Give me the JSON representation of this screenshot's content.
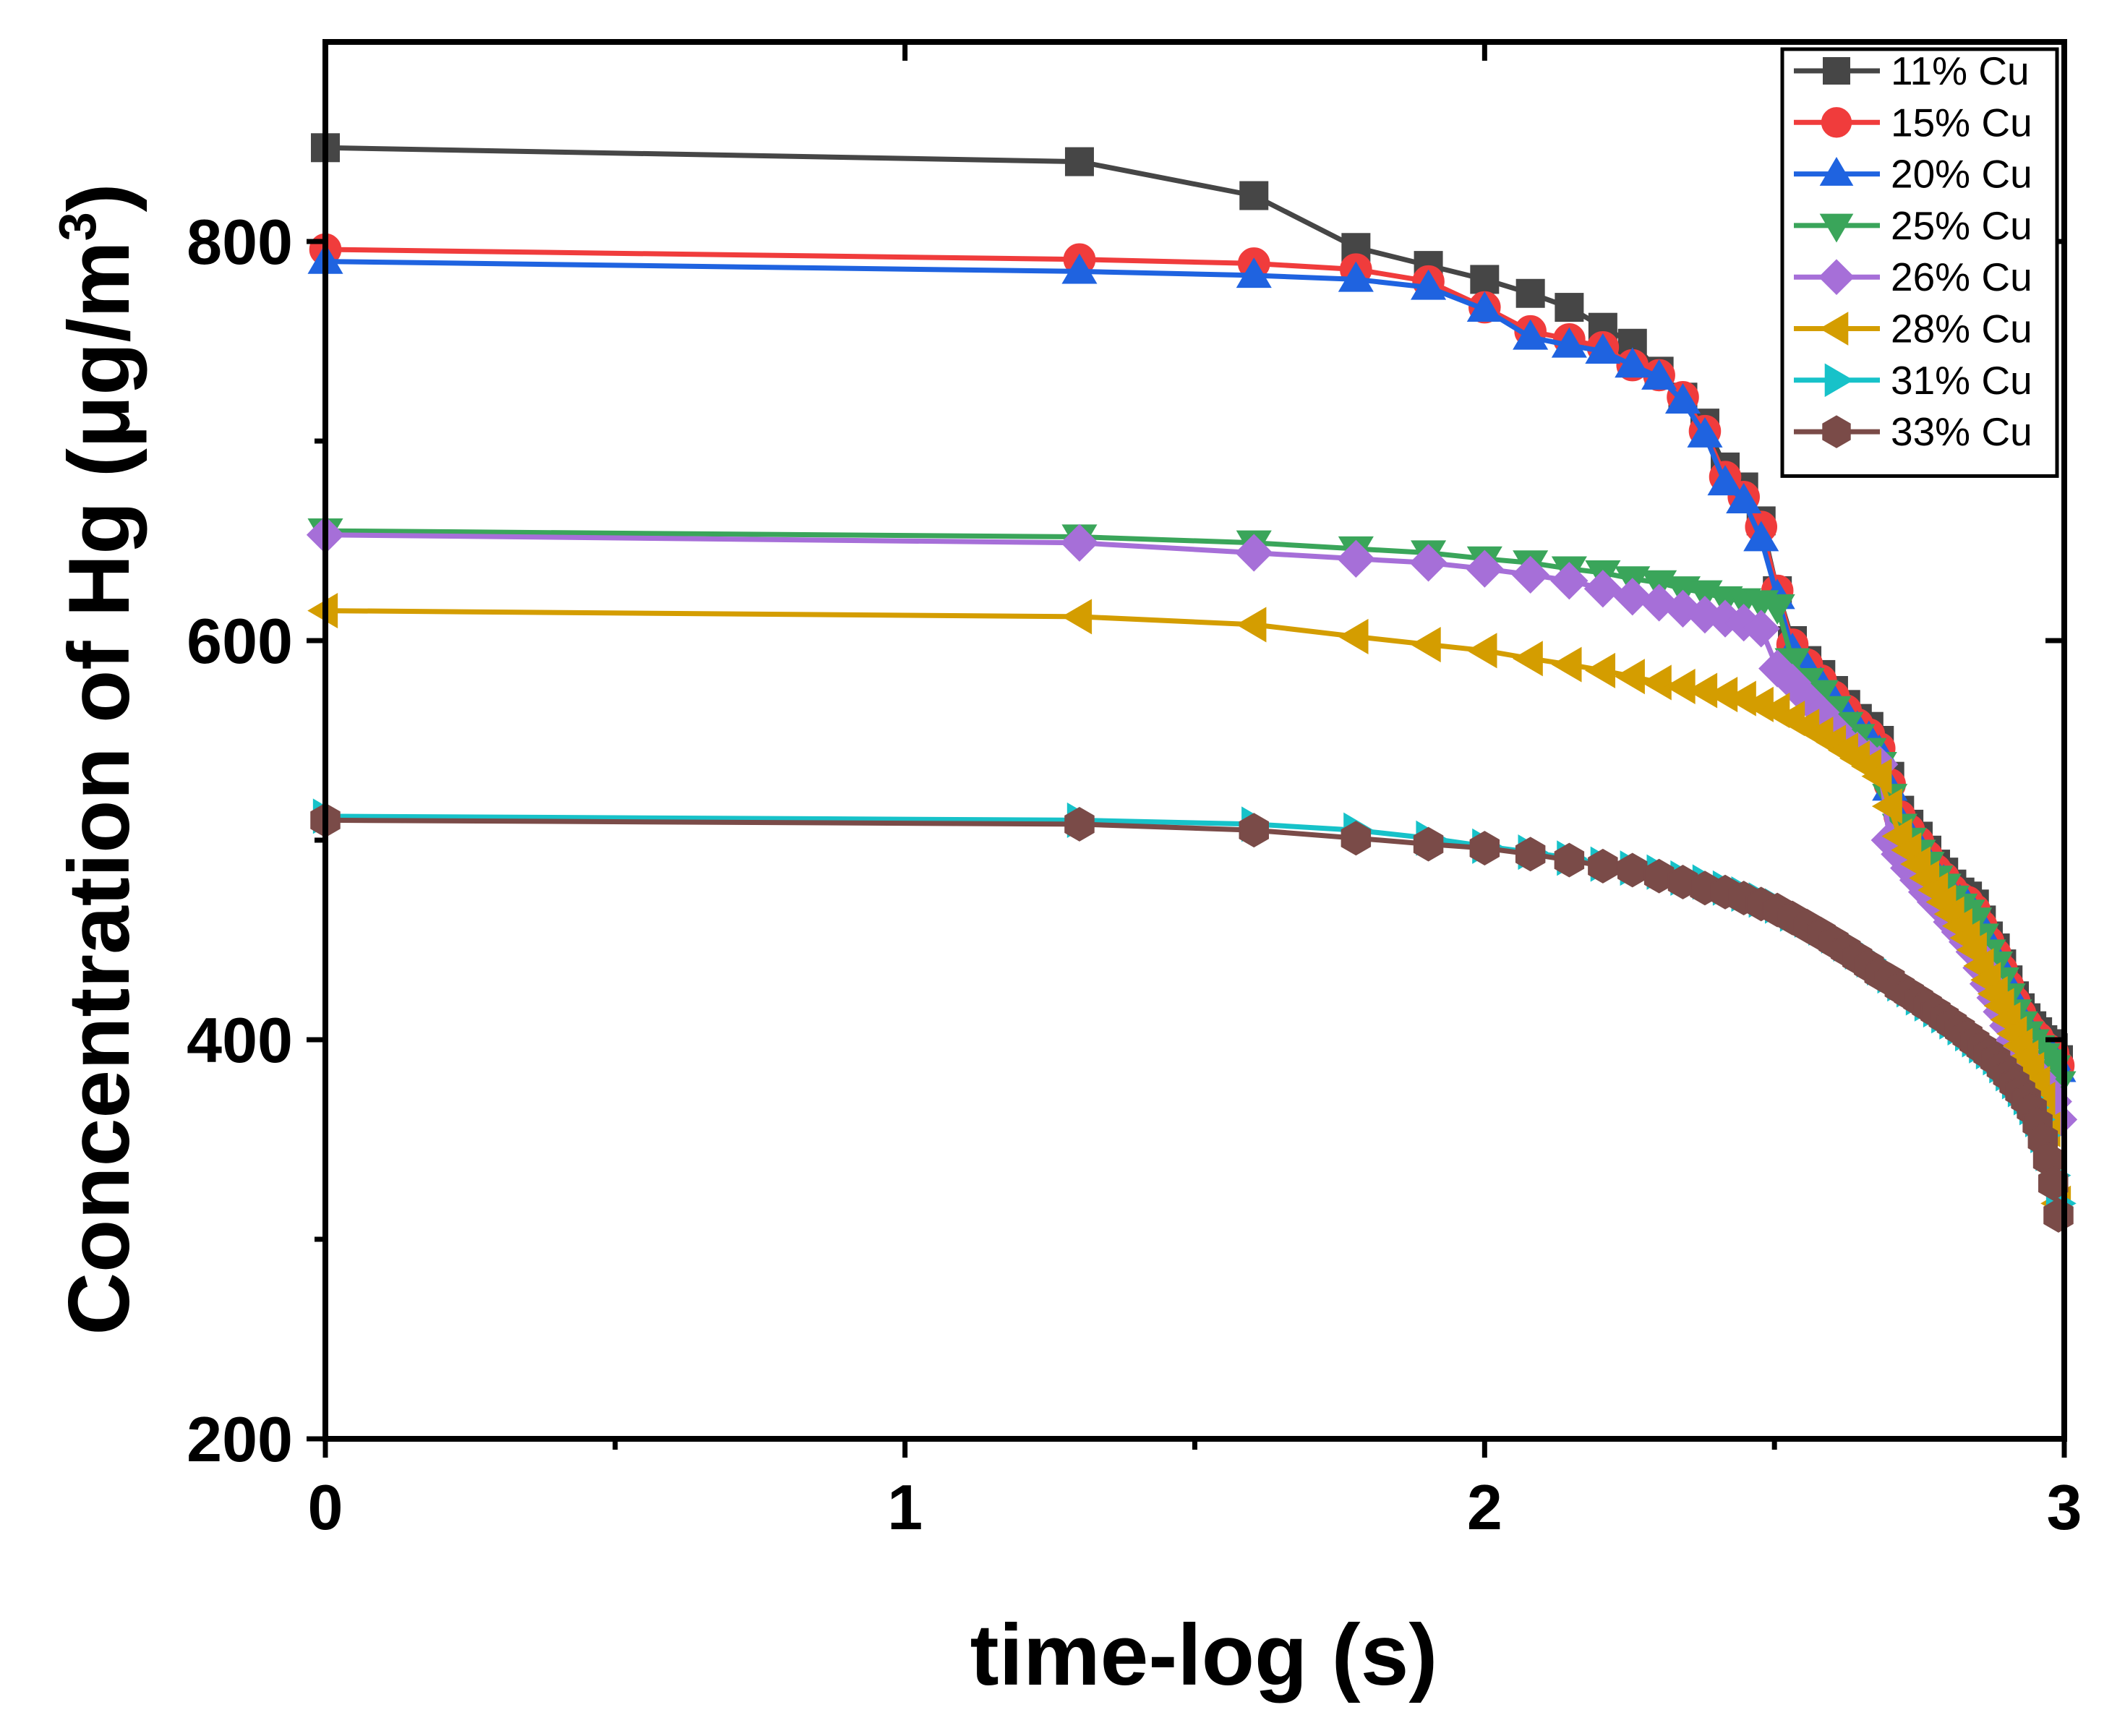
{
  "chart_data": {
    "type": "line",
    "title": "",
    "xlabel": "time-log (s)",
    "ylabel": "Concentration of Hg (μg/m",
    "ylabel_superscript": "3",
    "ylabel_close": ")",
    "xlim": [
      0,
      3
    ],
    "ylim": [
      200,
      900
    ],
    "x_ticks": [
      0,
      1,
      2,
      3
    ],
    "x_tick_labels": [
      "0",
      "1",
      "2",
      "3"
    ],
    "y_ticks": [
      200,
      400,
      600,
      800
    ],
    "y_tick_labels": [
      "200",
      "400",
      "600",
      "800"
    ],
    "x_minor_ticks": [
      0.5,
      1.5,
      2.5
    ],
    "y_minor_ticks": [
      300,
      500,
      700
    ],
    "grid": false,
    "legend_position": "top-right",
    "series": [
      {
        "name": "11% Cu",
        "color": "#464646",
        "marker": "square",
        "x": [
          0,
          1.301,
          1.602,
          1.778,
          1.903,
          2.0,
          2.079,
          2.146,
          2.204,
          2.255,
          2.301,
          2.342,
          2.38,
          2.415,
          2.447,
          2.477,
          2.505,
          2.531,
          2.556,
          2.58,
          2.602,
          2.623,
          2.643,
          2.663,
          2.681,
          2.699,
          2.716,
          2.732,
          2.748,
          2.763,
          2.778,
          2.792,
          2.806,
          2.82,
          2.833,
          2.845,
          2.857,
          2.869,
          2.881,
          2.892,
          2.903,
          2.914,
          2.924,
          2.934,
          2.944,
          2.954,
          2.963,
          2.972,
          2.981,
          2.99
        ],
        "y": [
          847,
          840,
          823,
          797,
          788,
          781,
          774,
          767,
          757,
          749,
          735,
          722,
          709,
          687,
          677,
          660,
          625,
          600,
          590,
          583,
          575,
          568,
          561,
          557,
          550,
          532,
          515,
          508,
          502,
          495,
          488,
          484,
          478,
          474,
          472,
          468,
          460,
          452,
          446,
          438,
          430,
          422,
          416,
          411,
          407,
          404,
          400,
          398,
          396,
          390
        ]
      },
      {
        "name": "15% Cu",
        "color": "#f03c3c",
        "marker": "circle",
        "x": [
          0,
          1.301,
          1.602,
          1.778,
          1.903,
          2.0,
          2.079,
          2.146,
          2.204,
          2.255,
          2.301,
          2.342,
          2.38,
          2.415,
          2.447,
          2.477,
          2.505,
          2.531,
          2.556,
          2.58,
          2.602,
          2.623,
          2.643,
          2.663,
          2.681,
          2.699,
          2.716,
          2.732,
          2.748,
          2.763,
          2.778,
          2.792,
          2.806,
          2.82,
          2.833,
          2.845,
          2.857,
          2.869,
          2.881,
          2.892,
          2.903,
          2.914,
          2.924,
          2.934,
          2.944,
          2.954,
          2.963,
          2.972,
          2.981,
          2.99
        ],
        "y": [
          796,
          791,
          789,
          786,
          780,
          767,
          755,
          751,
          747,
          738,
          733,
          722,
          705,
          682,
          672,
          657,
          625,
          598,
          588,
          580,
          572,
          565,
          558,
          553,
          546,
          528,
          512,
          505,
          499,
          492,
          485,
          481,
          475,
          471,
          469,
          465,
          457,
          449,
          443,
          435,
          427,
          419,
          413,
          408,
          404,
          401,
          397,
          395,
          393,
          387
        ]
      },
      {
        "name": "20% Cu",
        "color": "#1f63e0",
        "marker": "triangle-up",
        "x": [
          0,
          1.301,
          1.602,
          1.778,
          1.903,
          2.0,
          2.079,
          2.146,
          2.204,
          2.255,
          2.301,
          2.342,
          2.38,
          2.415,
          2.447,
          2.477,
          2.505,
          2.531,
          2.556,
          2.58,
          2.602,
          2.623,
          2.643,
          2.663,
          2.681,
          2.699,
          2.716,
          2.732,
          2.748,
          2.763,
          2.778,
          2.792,
          2.806,
          2.82,
          2.833,
          2.845,
          2.857,
          2.869,
          2.881,
          2.892,
          2.903,
          2.914,
          2.924,
          2.934,
          2.944,
          2.954,
          2.963,
          2.972,
          2.981,
          2.99
        ],
        "y": [
          790,
          785,
          783,
          781,
          777,
          766,
          752,
          748,
          745,
          738,
          732,
          720,
          703,
          679,
          670,
          651,
          622,
          595,
          586,
          578,
          570,
          563,
          556,
          551,
          544,
          526,
          510,
          503,
          497,
          490,
          483,
          479,
          473,
          469,
          467,
          463,
          455,
          447,
          441,
          433,
          425,
          417,
          411,
          406,
          402,
          399,
          395,
          393,
          391,
          385
        ]
      },
      {
        "name": "25% Cu",
        "color": "#3aa55a",
        "marker": "triangle-down",
        "x": [
          0,
          1.301,
          1.602,
          1.778,
          1.903,
          2.0,
          2.079,
          2.146,
          2.204,
          2.255,
          2.301,
          2.342,
          2.38,
          2.415,
          2.447,
          2.477,
          2.505,
          2.531,
          2.556,
          2.58,
          2.602,
          2.623,
          2.643,
          2.663,
          2.681,
          2.699,
          2.716,
          2.732,
          2.748,
          2.763,
          2.778,
          2.792,
          2.806,
          2.82,
          2.833,
          2.845,
          2.857,
          2.869,
          2.881,
          2.892,
          2.903,
          2.914,
          2.924,
          2.934,
          2.944,
          2.954,
          2.963,
          2.972,
          2.981,
          2.99
        ],
        "y": [
          655,
          652,
          649,
          646,
          644,
          641,
          639,
          636,
          634,
          631,
          629,
          626,
          624,
          621,
          620,
          619,
          617,
          590,
          580,
          574,
          566,
          558,
          552,
          545,
          538,
          522,
          507,
          500,
          494,
          488,
          481,
          477,
          471,
          467,
          464,
          460,
          452,
          444,
          438,
          430,
          422,
          414,
          408,
          403,
          399,
          396,
          392,
          389,
          386,
          378
        ]
      },
      {
        "name": "26% Cu",
        "color": "#a66fd8",
        "marker": "diamond",
        "x": [
          0,
          1.301,
          1.602,
          1.778,
          1.903,
          2.0,
          2.079,
          2.146,
          2.204,
          2.255,
          2.301,
          2.342,
          2.38,
          2.415,
          2.447,
          2.477,
          2.505,
          2.531,
          2.556,
          2.58,
          2.602,
          2.623,
          2.643,
          2.663,
          2.681,
          2.699,
          2.716,
          2.732,
          2.748,
          2.763,
          2.778,
          2.792,
          2.806,
          2.82,
          2.833,
          2.845,
          2.857,
          2.869,
          2.881,
          2.892,
          2.903,
          2.914,
          2.924,
          2.934,
          2.944,
          2.954,
          2.963,
          2.972,
          2.981,
          2.99
        ],
        "y": [
          653,
          649,
          644,
          641,
          639,
          636,
          633,
          630,
          626,
          622,
          619,
          616,
          613,
          611,
          609,
          606,
          586,
          579,
          571,
          564,
          556,
          549,
          545,
          541,
          538,
          500,
          493,
          486,
          480,
          474,
          469,
          465,
          459,
          454,
          449,
          444,
          436,
          428,
          421,
          414,
          407,
          400,
          395,
          390,
          385,
          381,
          377,
          373,
          369,
          360
        ]
      },
      {
        "name": "28% Cu",
        "color": "#d49d00",
        "marker": "triangle-left",
        "x": [
          0,
          1.301,
          1.602,
          1.778,
          1.903,
          2.0,
          2.079,
          2.146,
          2.204,
          2.255,
          2.301,
          2.342,
          2.38,
          2.415,
          2.447,
          2.477,
          2.505,
          2.531,
          2.556,
          2.58,
          2.602,
          2.623,
          2.643,
          2.663,
          2.681,
          2.699,
          2.716,
          2.732,
          2.748,
          2.763,
          2.778,
          2.792,
          2.806,
          2.82,
          2.833,
          2.845,
          2.857,
          2.869,
          2.881,
          2.892,
          2.903,
          2.914,
          2.924,
          2.934,
          2.944,
          2.954,
          2.963,
          2.972,
          2.981,
          2.99
        ],
        "y": [
          615,
          612,
          608,
          602,
          598,
          595,
          591,
          588,
          585,
          582,
          579,
          577,
          575,
          573,
          571,
          568,
          565,
          561,
          557,
          553,
          549,
          545,
          541,
          537,
          532,
          517,
          502,
          495,
          488,
          481,
          475,
          469,
          463,
          457,
          451,
          445,
          437,
          430,
          423,
          417,
          410,
          403,
          397,
          391,
          385,
          378,
          370,
          355,
          335,
          318
        ]
      },
      {
        "name": "31% Cu",
        "color": "#17c2c9",
        "marker": "triangle-right",
        "x": [
          0,
          1.301,
          1.602,
          1.778,
          1.903,
          2.0,
          2.079,
          2.146,
          2.204,
          2.255,
          2.301,
          2.342,
          2.38,
          2.415,
          2.447,
          2.477,
          2.505,
          2.531,
          2.556,
          2.58,
          2.602,
          2.623,
          2.643,
          2.663,
          2.681,
          2.699,
          2.716,
          2.732,
          2.748,
          2.763,
          2.778,
          2.792,
          2.806,
          2.82,
          2.833,
          2.845,
          2.857,
          2.869,
          2.881,
          2.892,
          2.903,
          2.914,
          2.924,
          2.934,
          2.944,
          2.954,
          2.963,
          2.972,
          2.981,
          2.99
        ],
        "y": [
          512,
          510,
          508,
          505,
          501,
          497,
          494,
          491,
          488,
          486,
          484,
          481,
          479,
          476,
          473,
          470,
          467,
          463,
          460,
          456,
          452,
          448,
          444,
          440,
          436,
          432,
          428,
          425,
          421,
          418,
          415,
          412,
          409,
          406,
          403,
          400,
          397,
          394,
          391,
          387,
          383,
          379,
          375,
          371,
          366,
          360,
          352,
          343,
          332,
          318
        ]
      },
      {
        "name": "33% Cu",
        "color": "#7a4b48",
        "marker": "hexagon",
        "x": [
          0,
          1.301,
          1.602,
          1.778,
          1.903,
          2.0,
          2.079,
          2.146,
          2.204,
          2.255,
          2.301,
          2.342,
          2.38,
          2.415,
          2.447,
          2.477,
          2.505,
          2.531,
          2.556,
          2.58,
          2.602,
          2.623,
          2.643,
          2.663,
          2.681,
          2.699,
          2.716,
          2.732,
          2.748,
          2.763,
          2.778,
          2.792,
          2.806,
          2.82,
          2.833,
          2.845,
          2.857,
          2.869,
          2.881,
          2.892,
          2.903,
          2.914,
          2.924,
          2.934,
          2.944,
          2.954,
          2.963,
          2.972,
          2.981,
          2.99
        ],
        "y": [
          510,
          508,
          505,
          501,
          498,
          496,
          493,
          490,
          487,
          485,
          482,
          479,
          476,
          474,
          471,
          468,
          465,
          461,
          457,
          453,
          449,
          445,
          441,
          437,
          433,
          430,
          426,
          423,
          420,
          417,
          414,
          411,
          408,
          405,
          402,
          399,
          396,
          393,
          390,
          386,
          382,
          378,
          374,
          370,
          365,
          358,
          350,
          340,
          328,
          312
        ]
      }
    ]
  }
}
